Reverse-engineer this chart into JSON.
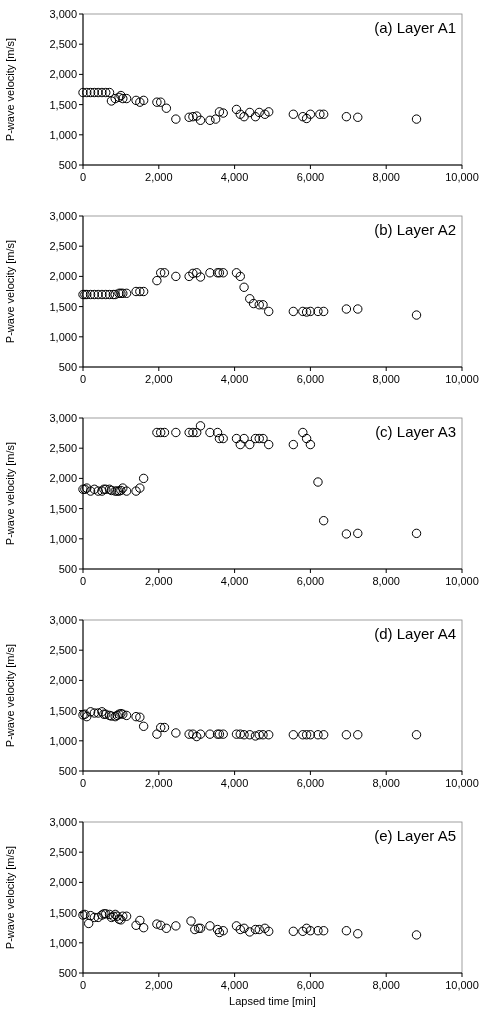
{
  "chart_data": [
    {
      "type": "scatter",
      "title": "(a) Layer A1",
      "ylabel": "P-wave velocity [m/s]",
      "marker": "circle",
      "xlim": [
        0,
        10000
      ],
      "ylim": [
        500,
        3000
      ],
      "xticks": [
        {
          "value": 0,
          "label": "0"
        },
        {
          "value": 2000,
          "label": "2,000"
        },
        {
          "value": 4000,
          "label": "4,000"
        },
        {
          "value": 6000,
          "label": "6,000"
        },
        {
          "value": 8000,
          "label": "8,000"
        },
        {
          "value": 10000,
          "label": "10,000"
        }
      ],
      "yticks": [
        {
          "value": 500,
          "label": "500"
        },
        {
          "value": 1000,
          "label": "1,000"
        },
        {
          "value": 1500,
          "label": "1,500"
        },
        {
          "value": 2000,
          "label": "2,000"
        },
        {
          "value": 2500,
          "label": "2,500"
        },
        {
          "value": 3000,
          "label": "3,000"
        }
      ],
      "series": [
        {
          "color": "#000000",
          "x": [
            0,
            100,
            200,
            300,
            400,
            500,
            600,
            700,
            750,
            850,
            950,
            1000,
            1050,
            1150,
            1400,
            1500,
            1600,
            1950,
            2050,
            2200,
            2450,
            2800,
            2900,
            3000,
            3100,
            3350,
            3500,
            3600,
            3700,
            4050,
            4150,
            4250,
            4400,
            4550,
            4650,
            4800,
            4900,
            5550,
            5800,
            5900,
            6000,
            6250,
            6350,
            6950,
            7250,
            8800
          ],
          "values": [
            1700,
            1700,
            1700,
            1700,
            1700,
            1700,
            1700,
            1700,
            1560,
            1600,
            1620,
            1650,
            1600,
            1600,
            1570,
            1540,
            1570,
            1540,
            1540,
            1440,
            1260,
            1290,
            1300,
            1310,
            1240,
            1240,
            1260,
            1380,
            1360,
            1420,
            1340,
            1300,
            1370,
            1300,
            1370,
            1340,
            1380,
            1340,
            1300,
            1270,
            1340,
            1340,
            1340,
            1300,
            1290,
            1260
          ]
        }
      ]
    },
    {
      "type": "scatter",
      "title": "(b) Layer A2",
      "ylabel": "P-wave velocity [m/s]",
      "marker": "circle",
      "xlim": [
        0,
        10000
      ],
      "ylim": [
        500,
        3000
      ],
      "xticks": [
        {
          "value": 0,
          "label": "0"
        },
        {
          "value": 2000,
          "label": "2,000"
        },
        {
          "value": 4000,
          "label": "4,000"
        },
        {
          "value": 6000,
          "label": "6,000"
        },
        {
          "value": 8000,
          "label": "8,000"
        },
        {
          "value": 10000,
          "label": "10,000"
        }
      ],
      "yticks": [
        {
          "value": 500,
          "label": "500"
        },
        {
          "value": 1000,
          "label": "1,000"
        },
        {
          "value": 1500,
          "label": "1,500"
        },
        {
          "value": 2000,
          "label": "2,000"
        },
        {
          "value": 2500,
          "label": "2,500"
        },
        {
          "value": 3000,
          "label": "3,000"
        }
      ],
      "series": [
        {
          "color": "#000000",
          "x": [
            0,
            50,
            100,
            200,
            300,
            400,
            500,
            600,
            700,
            800,
            850,
            950,
            1000,
            1050,
            1150,
            1400,
            1500,
            1600,
            1950,
            2050,
            2150,
            2450,
            2800,
            2900,
            3000,
            3100,
            3350,
            3550,
            3600,
            3700,
            4050,
            4150,
            4250,
            4400,
            4500,
            4650,
            4750,
            4900,
            5550,
            5800,
            5900,
            6000,
            6200,
            6350,
            6950,
            7250,
            8800
          ],
          "values": [
            1700,
            1700,
            1700,
            1700,
            1700,
            1700,
            1700,
            1700,
            1700,
            1700,
            1700,
            1720,
            1720,
            1720,
            1720,
            1750,
            1750,
            1750,
            1930,
            2060,
            2060,
            2000,
            2000,
            2050,
            2060,
            1990,
            2060,
            2060,
            2060,
            2060,
            2060,
            2000,
            1820,
            1630,
            1550,
            1530,
            1530,
            1420,
            1420,
            1420,
            1410,
            1420,
            1420,
            1420,
            1460,
            1460,
            1360
          ]
        }
      ]
    },
    {
      "type": "scatter",
      "title": "(c) Layer A3",
      "ylabel": "P-wave velocity [m/s]",
      "marker": "circle",
      "xlim": [
        0,
        10000
      ],
      "ylim": [
        500,
        3000
      ],
      "xticks": [
        {
          "value": 0,
          "label": "0"
        },
        {
          "value": 2000,
          "label": "2,000"
        },
        {
          "value": 4000,
          "label": "4,000"
        },
        {
          "value": 6000,
          "label": "6,000"
        },
        {
          "value": 8000,
          "label": "8,000"
        },
        {
          "value": 10000,
          "label": "10,000"
        }
      ],
      "yticks": [
        {
          "value": 500,
          "label": "500"
        },
        {
          "value": 1000,
          "label": "1,000"
        },
        {
          "value": 1500,
          "label": "1,500"
        },
        {
          "value": 2000,
          "label": "2,000"
        },
        {
          "value": 2500,
          "label": "2,500"
        },
        {
          "value": 3000,
          "label": "3,000"
        }
      ],
      "series": [
        {
          "color": "#000000",
          "x": [
            0,
            50,
            100,
            200,
            300,
            400,
            500,
            550,
            600,
            700,
            750,
            850,
            900,
            950,
            1000,
            1050,
            1150,
            1400,
            1500,
            1600,
            1950,
            2050,
            2150,
            2450,
            2800,
            2900,
            3000,
            3100,
            3350,
            3550,
            3600,
            3700,
            4050,
            4150,
            4250,
            4400,
            4550,
            4650,
            4750,
            4900,
            5550,
            5800,
            5900,
            6000,
            6200,
            6350,
            6950,
            7250,
            8800
          ],
          "values": [
            1820,
            1820,
            1840,
            1790,
            1820,
            1790,
            1790,
            1820,
            1820,
            1820,
            1800,
            1790,
            1790,
            1790,
            1800,
            1840,
            1790,
            1790,
            1840,
            2000,
            2760,
            2760,
            2760,
            2760,
            2760,
            2760,
            2760,
            2870,
            2760,
            2760,
            2660,
            2660,
            2660,
            2560,
            2660,
            2560,
            2660,
            2660,
            2660,
            2560,
            2560,
            2760,
            2660,
            2560,
            1940,
            1300,
            1080,
            1090,
            1090
          ]
        }
      ]
    },
    {
      "type": "scatter",
      "title": "(d) Layer A4",
      "ylabel": "P-wave velocity [m/s]",
      "marker": "circle",
      "xlim": [
        0,
        10000
      ],
      "ylim": [
        500,
        3000
      ],
      "xticks": [
        {
          "value": 0,
          "label": "0"
        },
        {
          "value": 2000,
          "label": "2,000"
        },
        {
          "value": 4000,
          "label": "4,000"
        },
        {
          "value": 6000,
          "label": "6,000"
        },
        {
          "value": 8000,
          "label": "8,000"
        },
        {
          "value": 10000,
          "label": "10,000"
        }
      ],
      "yticks": [
        {
          "value": 500,
          "label": "500"
        },
        {
          "value": 1000,
          "label": "1,000"
        },
        {
          "value": 1500,
          "label": "1,500"
        },
        {
          "value": 2000,
          "label": "2,000"
        },
        {
          "value": 2500,
          "label": "2,500"
        },
        {
          "value": 3000,
          "label": "3,000"
        }
      ],
      "series": [
        {
          "color": "#000000",
          "x": [
            0,
            50,
            100,
            200,
            300,
            400,
            500,
            550,
            600,
            700,
            750,
            850,
            900,
            950,
            1000,
            1050,
            1150,
            1400,
            1500,
            1600,
            1950,
            2050,
            2150,
            2450,
            2800,
            2900,
            3000,
            3100,
            3350,
            3550,
            3600,
            3700,
            4050,
            4150,
            4250,
            4400,
            4550,
            4650,
            4750,
            4900,
            5550,
            5800,
            5900,
            6000,
            6200,
            6350,
            6950,
            7250,
            8800
          ],
          "values": [
            1430,
            1440,
            1400,
            1480,
            1460,
            1460,
            1480,
            1440,
            1440,
            1420,
            1410,
            1400,
            1420,
            1440,
            1450,
            1440,
            1420,
            1400,
            1390,
            1240,
            1110,
            1220,
            1220,
            1130,
            1110,
            1110,
            1070,
            1110,
            1110,
            1110,
            1110,
            1110,
            1110,
            1110,
            1100,
            1100,
            1080,
            1100,
            1100,
            1100,
            1100,
            1100,
            1100,
            1100,
            1100,
            1100,
            1100,
            1100,
            1100
          ]
        }
      ]
    },
    {
      "type": "scatter",
      "title": "(e) Layer A5",
      "ylabel": "P-wave velocity [m/s]",
      "xlabel": "Lapsed time [min]",
      "marker": "circle",
      "xlim": [
        0,
        10000
      ],
      "ylim": [
        500,
        3000
      ],
      "xticks": [
        {
          "value": 0,
          "label": "0"
        },
        {
          "value": 2000,
          "label": "2,000"
        },
        {
          "value": 4000,
          "label": "4,000"
        },
        {
          "value": 6000,
          "label": "6,000"
        },
        {
          "value": 8000,
          "label": "8,000"
        },
        {
          "value": 10000,
          "label": "10,000"
        }
      ],
      "yticks": [
        {
          "value": 500,
          "label": "500"
        },
        {
          "value": 1000,
          "label": "1,000"
        },
        {
          "value": 1500,
          "label": "1,500"
        },
        {
          "value": 2000,
          "label": "2,000"
        },
        {
          "value": 2500,
          "label": "2,500"
        },
        {
          "value": 3000,
          "label": "3,000"
        }
      ],
      "series": [
        {
          "color": "#000000",
          "x": [
            0,
            50,
            150,
            200,
            300,
            400,
            500,
            550,
            600,
            700,
            750,
            800,
            850,
            900,
            950,
            1000,
            1050,
            1150,
            1400,
            1500,
            1600,
            1950,
            2050,
            2200,
            2450,
            2850,
            2950,
            3050,
            3100,
            3350,
            3550,
            3600,
            3700,
            4050,
            4150,
            4250,
            4400,
            4550,
            4650,
            4800,
            4900,
            5550,
            5800,
            5900,
            6000,
            6200,
            6350,
            6950,
            7250,
            8800
          ],
          "values": [
            1460,
            1470,
            1320,
            1450,
            1420,
            1420,
            1460,
            1480,
            1480,
            1470,
            1420,
            1440,
            1470,
            1440,
            1390,
            1380,
            1440,
            1440,
            1290,
            1370,
            1250,
            1310,
            1290,
            1240,
            1280,
            1360,
            1220,
            1240,
            1240,
            1280,
            1220,
            1170,
            1200,
            1280,
            1220,
            1240,
            1180,
            1220,
            1220,
            1240,
            1190,
            1190,
            1190,
            1240,
            1200,
            1200,
            1200,
            1200,
            1150,
            1130
          ]
        }
      ]
    }
  ]
}
